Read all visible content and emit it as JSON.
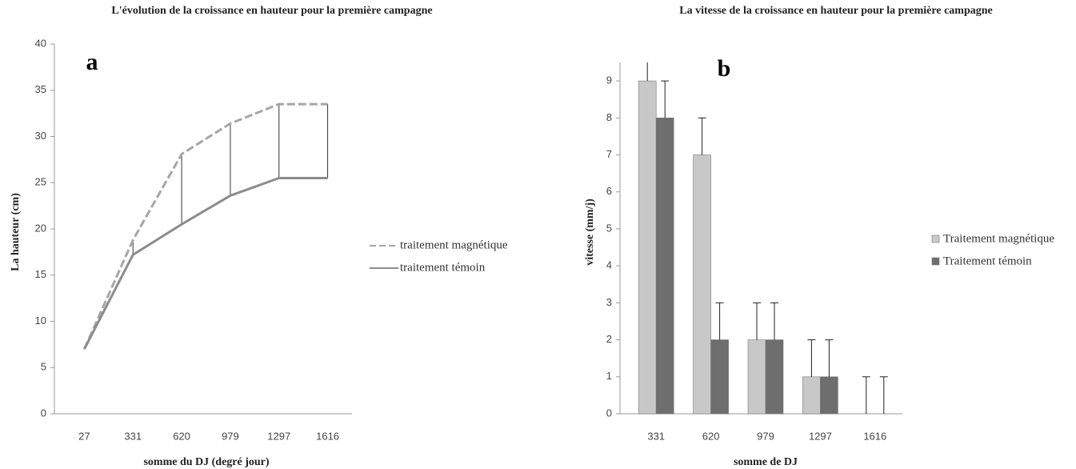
{
  "chart_data": [
    {
      "type": "line",
      "title": "L'évolution de la croissance en hauteur pour la première campagne",
      "annotation": "a",
      "x_label": "somme du DJ (degré jour)",
      "y_label": "La hauteur (cm)",
      "categories": [
        "27",
        "331",
        "620",
        "979",
        "1297",
        "1616"
      ],
      "series": [
        {
          "name": "traitement magnétique",
          "color": "#a6a6a6",
          "dashed": true,
          "values": [
            7,
            18.8,
            28.1,
            31.4,
            33.5,
            33.5
          ]
        },
        {
          "name": "traitement témoin",
          "color": "#8c8c8c",
          "dashed": false,
          "values": [
            7,
            17.2,
            20.5,
            23.6,
            25.5,
            25.5
          ]
        }
      ],
      "drop_lines": true,
      "ylim": [
        0,
        40
      ],
      "yticks": [
        0,
        5,
        10,
        15,
        20,
        25,
        30,
        35,
        40
      ],
      "legend": "right"
    },
    {
      "type": "bar",
      "title": "La vitesse de la croissance en hauteur pour la première campagne",
      "annotation": "b",
      "x_label": "somme de DJ",
      "y_label": "vitesse (mm/j)",
      "categories": [
        "331",
        "620",
        "979",
        "1297",
        "1616"
      ],
      "series": [
        {
          "name": "Traitement magnétique",
          "color": "#c8c8c8",
          "values": [
            9,
            7,
            2,
            1,
            0
          ],
          "errors": [
            1,
            1,
            1,
            1,
            1
          ]
        },
        {
          "name": "Traitement témoin",
          "color": "#6e6e6e",
          "values": [
            8,
            2,
            2,
            1,
            0
          ],
          "errors": [
            1,
            1,
            1,
            1,
            1
          ]
        }
      ],
      "ylim": [
        0,
        9.5
      ],
      "yticks": [
        0,
        1,
        2,
        3,
        4,
        5,
        6,
        7,
        8,
        9
      ],
      "legend": "right"
    }
  ]
}
